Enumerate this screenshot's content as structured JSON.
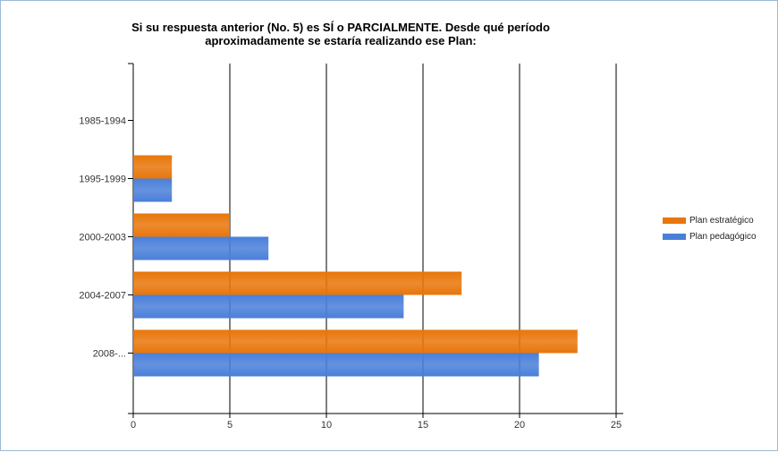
{
  "chart_data": {
    "type": "bar",
    "orientation": "horizontal",
    "title_lines": [
      "Si su respuesta anterior (No. 5) es SÍ o PARCIALMENTE. Desde qué período",
      "aproximadamente se estaría realizando ese Plan:"
    ],
    "categories": [
      "1985-1994",
      "1995-1999",
      "2000-2003",
      "2004-2007",
      "2008-..."
    ],
    "series": [
      {
        "name": "Plan estratégico",
        "color": "#e8760a",
        "values": [
          0,
          2,
          5,
          17,
          23
        ]
      },
      {
        "name": "Plan pedagógico",
        "color": "#4a7fd9",
        "values": [
          0,
          2,
          7,
          14,
          21
        ]
      }
    ],
    "xlim": [
      0,
      25
    ],
    "x_ticks": [
      0,
      5,
      10,
      15,
      20,
      25
    ],
    "grid": true,
    "legend_position": "right"
  }
}
